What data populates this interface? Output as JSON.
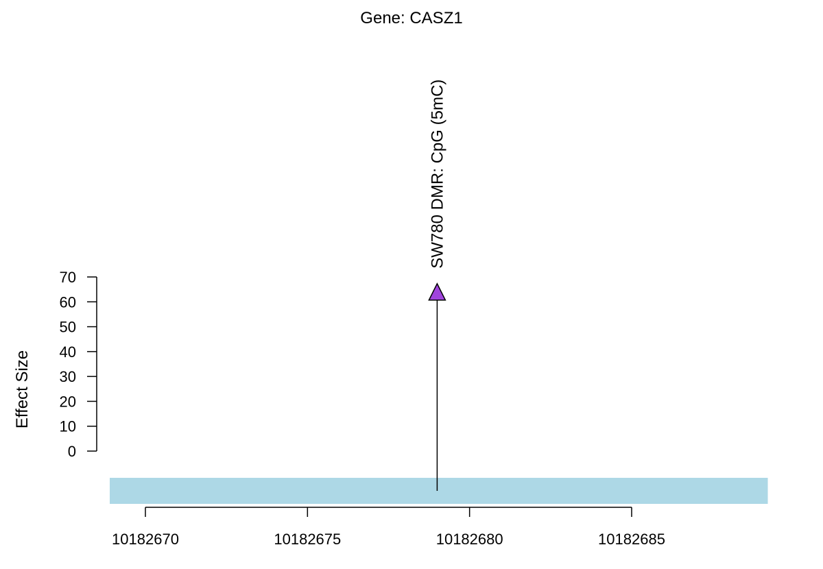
{
  "chart_data": {
    "type": "lollipop",
    "title": "Gene: CASZ1",
    "xlabel": "",
    "ylabel": "Effect Size",
    "ylim": [
      0,
      70
    ],
    "yticks": [
      0,
      10,
      20,
      30,
      40,
      50,
      60,
      70
    ],
    "xlim": [
      10182668.9,
      10182689.2
    ],
    "xticks": [
      10182670,
      10182675,
      10182680,
      10182685
    ],
    "xtick_labels": [
      "10182670",
      "10182675",
      "10182680",
      "10182685"
    ],
    "grid": false,
    "legend": "none",
    "gene_track": {
      "color": "#add8e6",
      "start": 10182668.9,
      "end": 10182689.2
    },
    "points": [
      {
        "x": 10182679,
        "y": 64,
        "label": "SW780 DMR: CpG (5mC)",
        "marker": "triangle",
        "color": "#a044dd"
      }
    ]
  }
}
